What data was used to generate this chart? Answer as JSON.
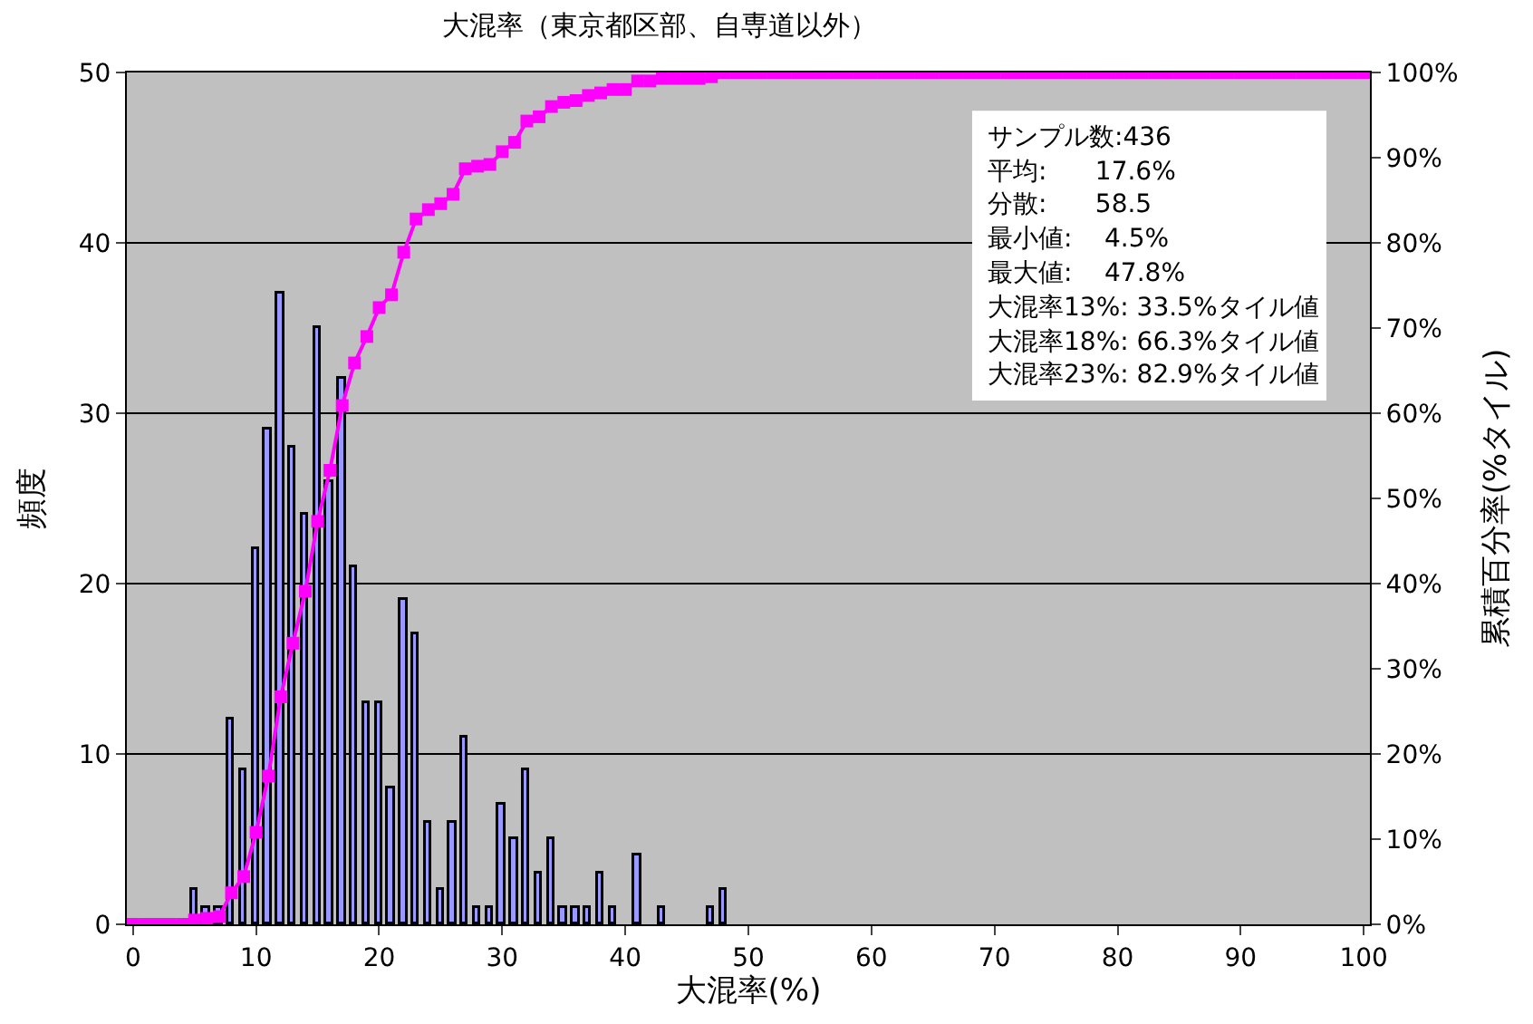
{
  "chart_data": {
    "type": "bar",
    "title": "大混率（東京都区部、自専道以外）",
    "xlabel": "大混率(%)",
    "ylabel": "頻度",
    "y2label": "累積百分率(%タイル)",
    "categories": [
      "0",
      null,
      null,
      null,
      null,
      null,
      null,
      null,
      null,
      null,
      "10",
      null,
      null,
      null,
      null,
      null,
      null,
      null,
      null,
      null,
      "20",
      null,
      null,
      null,
      null,
      null,
      null,
      null,
      null,
      null,
      "30",
      null,
      null,
      null,
      null,
      null,
      null,
      null,
      null,
      null,
      "40",
      null,
      null,
      null,
      null,
      null,
      null,
      null,
      null,
      null,
      "50",
      null,
      null,
      null,
      null,
      null,
      null,
      null,
      null,
      null,
      "60",
      null,
      null,
      null,
      null,
      null,
      null,
      null,
      null,
      null,
      "70",
      null,
      null,
      null,
      null,
      null,
      null,
      null,
      null,
      null,
      "80",
      null,
      null,
      null,
      null,
      null,
      null,
      null,
      null,
      null,
      "90",
      null,
      null,
      null,
      null,
      null,
      null,
      null,
      null,
      null,
      "100"
    ],
    "series": [
      {
        "color": "#9999ff",
        "values": [
          0,
          0,
          0,
          0,
          0,
          2,
          1,
          1,
          12,
          9,
          22,
          29,
          37,
          28,
          24,
          35,
          26,
          32,
          21,
          13,
          13,
          8,
          19,
          17,
          6,
          2,
          6,
          11,
          1,
          1,
          7,
          5,
          9,
          3,
          5,
          1,
          1,
          1,
          3,
          1,
          0,
          4,
          0,
          1,
          0,
          0,
          0,
          1,
          2,
          0,
          0,
          0,
          0,
          0,
          0,
          0,
          0,
          0,
          0,
          0,
          0,
          0,
          0,
          0,
          0,
          0,
          0,
          0,
          0,
          0,
          0,
          0,
          0,
          0,
          0,
          0,
          0,
          0,
          0,
          0,
          0,
          0,
          0,
          0,
          0,
          0,
          0,
          0,
          0,
          0,
          0,
          0,
          0,
          0,
          0,
          0,
          0,
          0,
          0,
          0,
          0
        ]
      },
      {
        "type": "line",
        "axis": "y2",
        "color": "#ff00ff",
        "marker": "square",
        "values": [
          0,
          0,
          0,
          0,
          0,
          0.5,
          0.7,
          0.9,
          3.7,
          5.6,
          10.8,
          17.4,
          26.7,
          33,
          39.1,
          47.3,
          53.3,
          60.9,
          65.9,
          69,
          72.4,
          73.9,
          78.9,
          82.8,
          83.9,
          84.6,
          85.7,
          88.7,
          89,
          89.2,
          90.7,
          91.8,
          94.3,
          94.8,
          96,
          96.5,
          96.7,
          97.3,
          97.6,
          98,
          98,
          99,
          99,
          99.3,
          99.3,
          99.3,
          99.3,
          99.5,
          100,
          100,
          100,
          100,
          100,
          100,
          100,
          100,
          100,
          100,
          100,
          100,
          100,
          100,
          100,
          100,
          100,
          100,
          100,
          100,
          100,
          100,
          100,
          100,
          100,
          100,
          100,
          100,
          100,
          100,
          100,
          100,
          100,
          100,
          100,
          100,
          100,
          100,
          100,
          100,
          100,
          100,
          100,
          100,
          100,
          100,
          100,
          100,
          100,
          100,
          100,
          100,
          100
        ]
      }
    ],
    "ylim": [
      0,
      50
    ],
    "yticks": [
      0,
      10,
      20,
      30,
      40,
      50
    ],
    "y2lim": [
      0,
      100
    ],
    "y2ticks": [
      {
        "value": 0,
        "label": "0%"
      },
      {
        "value": 10,
        "label": "10%"
      },
      {
        "value": 20,
        "label": "20%"
      },
      {
        "value": 30,
        "label": "30%"
      },
      {
        "value": 40,
        "label": "40%"
      },
      {
        "value": 50,
        "label": "50%"
      },
      {
        "value": 60,
        "label": "60%"
      },
      {
        "value": 70,
        "label": "70%"
      },
      {
        "value": 80,
        "label": "80%"
      },
      {
        "value": 90,
        "label": "90%"
      },
      {
        "value": 100,
        "label": "100%"
      }
    ],
    "annotations": [
      "サンプル数:436",
      "平均:      17.6%",
      "分散:      58.5",
      "最小値:    4.5%",
      "最大値:    47.8%",
      "大混率13%: 33.5%タイル値",
      "大混率18%: 66.3%タイル値",
      "大混率23%: 82.9%タイル値"
    ],
    "grid": "y"
  }
}
